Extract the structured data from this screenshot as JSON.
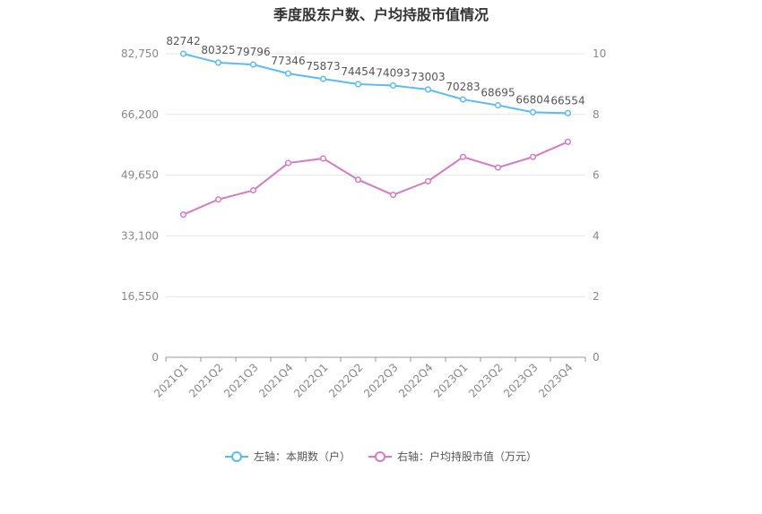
{
  "chart_data": {
    "type": "line",
    "title": "季度股东户数、户均持股市值情况",
    "categories": [
      "2021Q1",
      "2021Q2",
      "2021Q3",
      "2021Q4",
      "2022Q1",
      "2022Q2",
      "2022Q3",
      "2022Q4",
      "2023Q1",
      "2023Q2",
      "2023Q3",
      "2023Q4"
    ],
    "left_axis": {
      "ticks": [
        "0",
        "16,550",
        "33,100",
        "49,650",
        "66,200",
        "82,750"
      ],
      "ylim": [
        0,
        82750
      ]
    },
    "right_axis": {
      "ticks": [
        "0",
        "2",
        "4",
        "6",
        "8",
        "10"
      ],
      "ylim": [
        0,
        10
      ]
    },
    "series": [
      {
        "name": "左轴：本期数（户）",
        "axis": "left",
        "color": "#5bbcec",
        "values": [
          82742,
          80325,
          79796,
          77346,
          75873,
          74454,
          74093,
          73003,
          70283,
          68695,
          66804,
          66554
        ],
        "labels": [
          "82742",
          "80325",
          "79796",
          "77346",
          "75873",
          "74454",
          "74093",
          "73003",
          "70283",
          "68695",
          "66804",
          "66554"
        ]
      },
      {
        "name": "右轴：户均持股市值（万元）",
        "axis": "right",
        "color": "#d67ac2",
        "values": [
          4.7,
          5.2,
          5.5,
          6.4,
          6.55,
          5.85,
          5.35,
          5.8,
          6.6,
          6.25,
          6.6,
          7.1
        ]
      }
    ],
    "grid": true,
    "legend_position": "bottom"
  }
}
